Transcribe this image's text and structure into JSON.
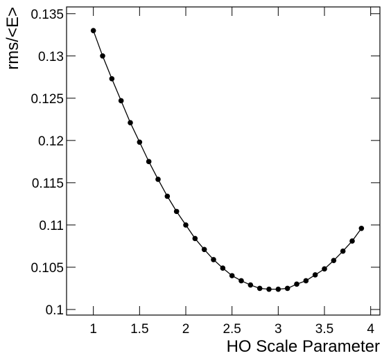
{
  "chart_data": {
    "type": "line",
    "x_label": "HO Scale Parameter",
    "y_label": "rms/<E>",
    "x": [
      1.0,
      1.1,
      1.2,
      1.3,
      1.4,
      1.5,
      1.6,
      1.7,
      1.8,
      1.9,
      2.0,
      2.1,
      2.2,
      2.3,
      2.4,
      2.5,
      2.6,
      2.7,
      2.8,
      2.9,
      3.0,
      3.1,
      3.2,
      3.3,
      3.4,
      3.5,
      3.6,
      3.7,
      3.8,
      3.9
    ],
    "series": [
      {
        "color": "#000000",
        "values": [
          0.133,
          0.13,
          0.1273,
          0.1247,
          0.1221,
          0.1198,
          0.1175,
          0.1154,
          0.1134,
          0.1116,
          0.11,
          0.1084,
          0.1071,
          0.1059,
          0.1049,
          0.104,
          0.1034,
          0.1029,
          0.1025,
          0.1024,
          0.1024,
          0.1025,
          0.103,
          0.1034,
          0.1041,
          0.1048,
          0.1058,
          0.1069,
          0.1081,
          0.1096
        ]
      }
    ],
    "xlim": [
      0.71,
      4.1
    ],
    "ylim": [
      0.09934,
      0.1358
    ],
    "xticks": [
      1,
      1.5,
      2,
      2.5,
      3,
      3.5,
      4
    ],
    "yticks": [
      0.1,
      0.105,
      0.11,
      0.115,
      0.12,
      0.125,
      0.13,
      0.135
    ]
  }
}
